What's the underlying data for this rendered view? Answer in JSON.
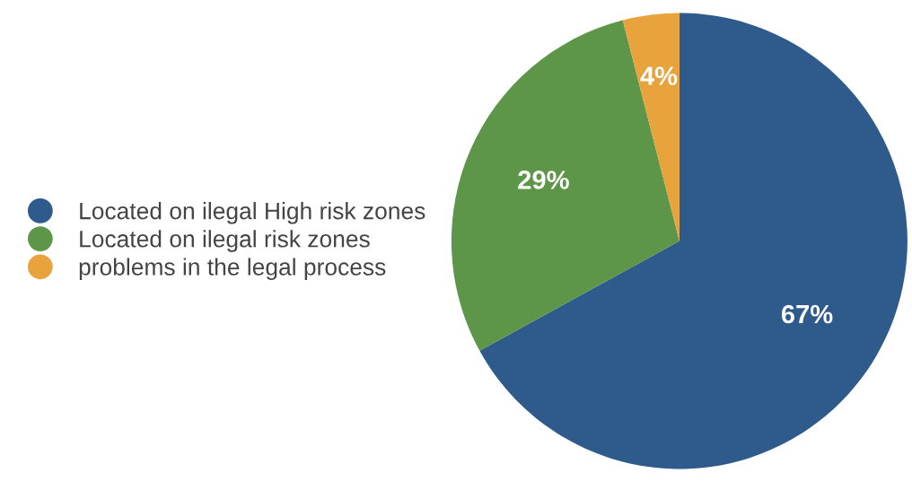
{
  "chart_data": {
    "type": "pie",
    "categories": [
      "Located on ilegal High risk zones",
      "Located on ilegal risk zones",
      "problems in the legal process"
    ],
    "values": [
      67,
      29,
      4
    ],
    "colors": [
      "#2e5a8c",
      "#5d9648",
      "#e8a33d"
    ],
    "value_labels": [
      "67%",
      "29%",
      "4%"
    ],
    "legend": "left"
  }
}
